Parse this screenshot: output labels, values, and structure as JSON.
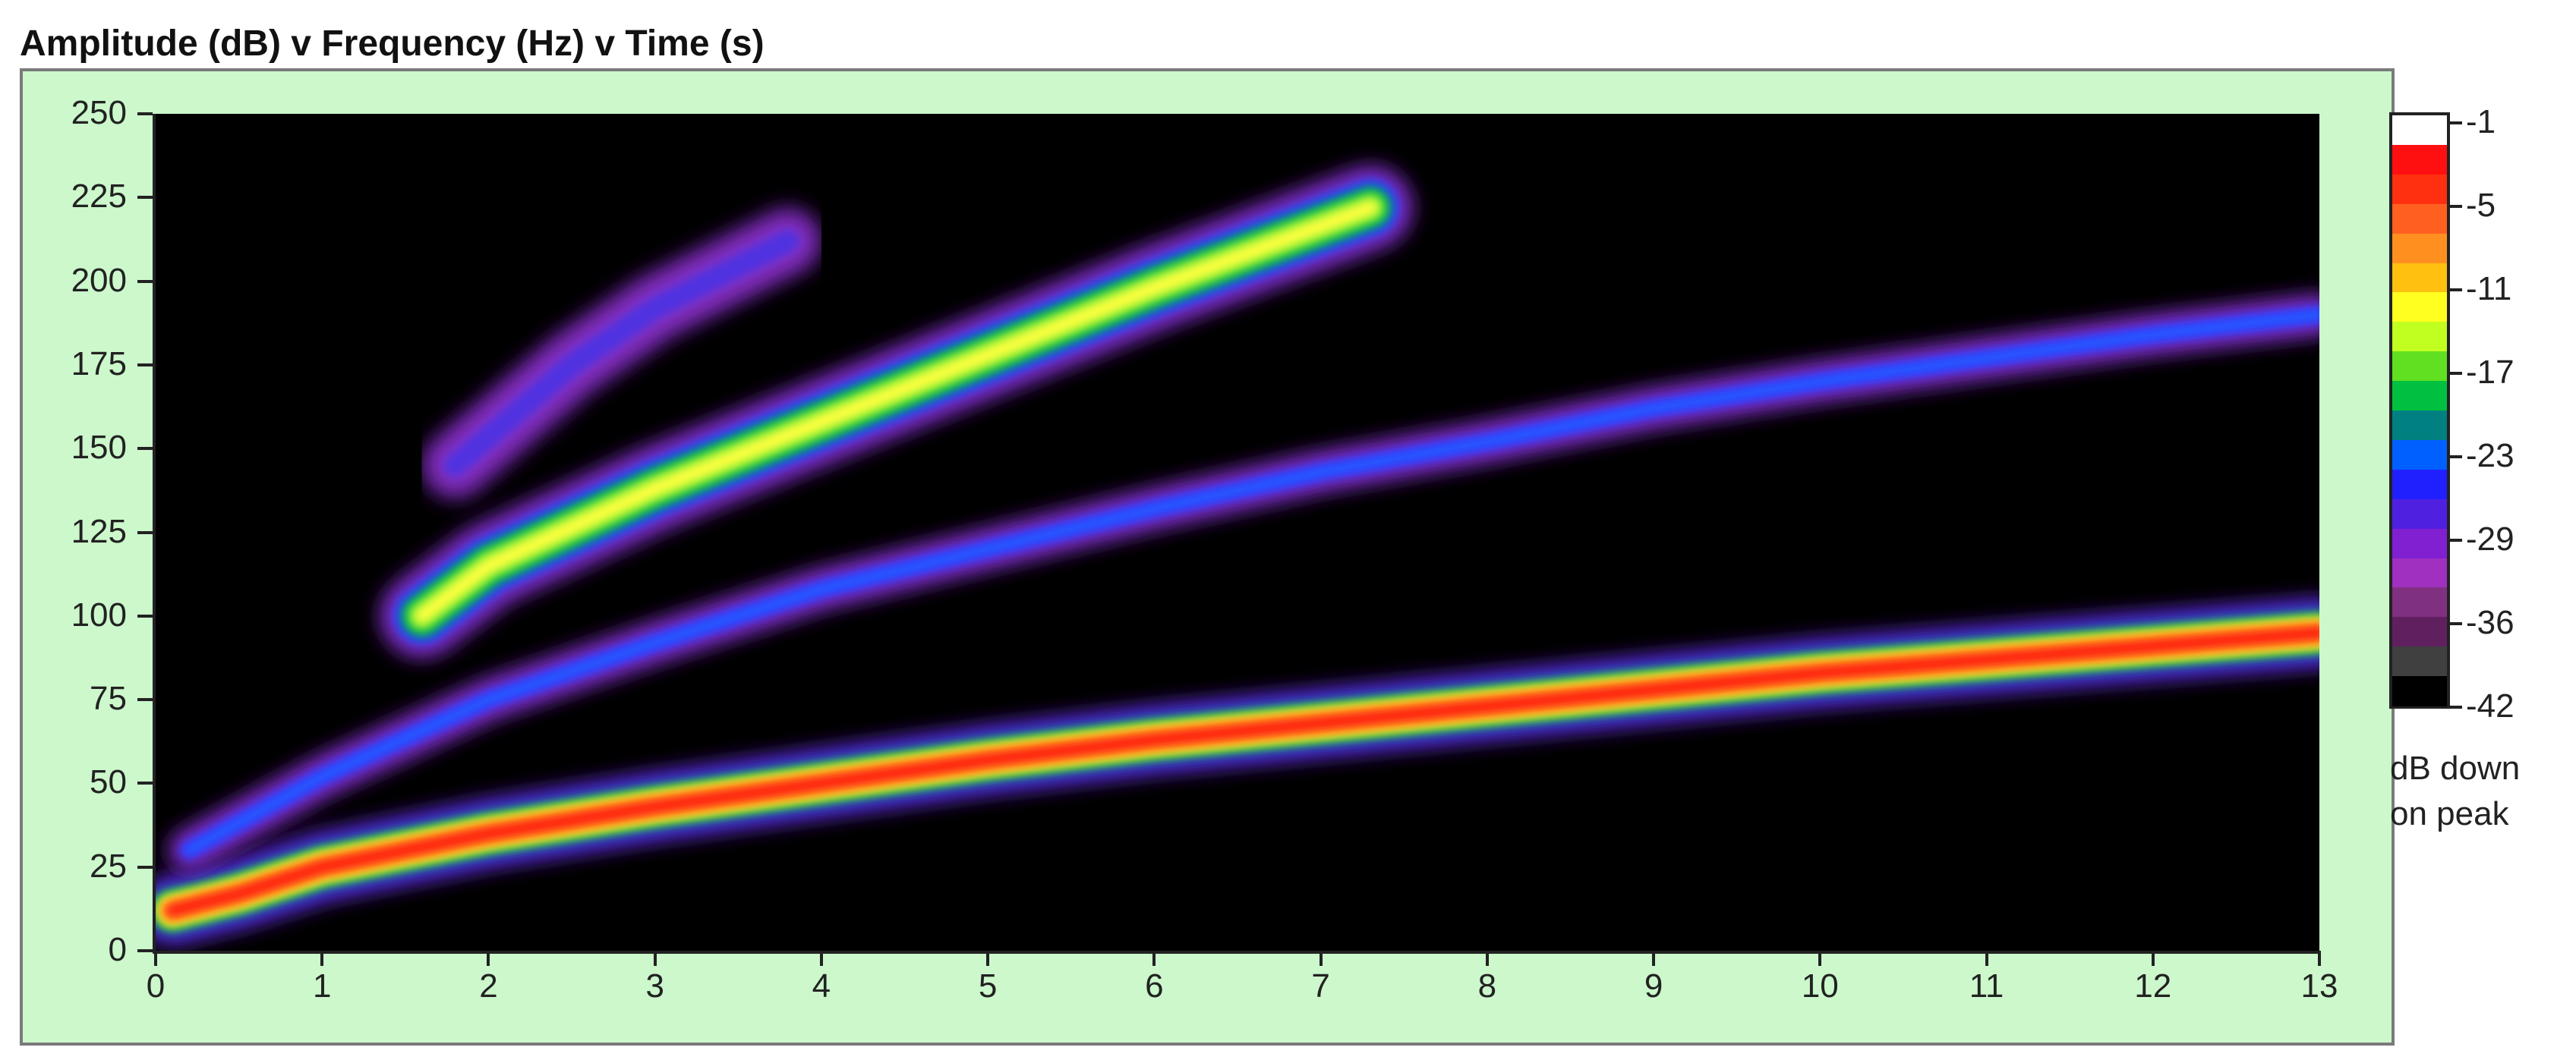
{
  "title": "Amplitude (dB) v Frequency (Hz) v Time (s)",
  "colors": {
    "panel_bg": "#ccf8cc",
    "plot_bg": "#000000"
  },
  "chart_data": {
    "type": "heatmap",
    "title": "Amplitude (dB) v Frequency (Hz) v Time (s)",
    "xlabel": "",
    "ylabel": "",
    "xlim": [
      0,
      13
    ],
    "ylim": [
      0,
      250
    ],
    "x_ticks": [
      "0",
      "1",
      "2",
      "3",
      "4",
      "5",
      "6",
      "7",
      "8",
      "9",
      "10",
      "11",
      "12",
      "13"
    ],
    "y_ticks": [
      "0",
      "25",
      "50",
      "75",
      "100",
      "125",
      "150",
      "175",
      "200",
      "225",
      "250"
    ],
    "colorbar": {
      "labels": [
        "-1",
        "-5",
        "-11",
        "-17",
        "-23",
        "-29",
        "-36",
        "-42"
      ],
      "title_line1": "dB down",
      "title_line2": "on peak",
      "colors": [
        "#ffffff",
        "#ff1010",
        "#ff3010",
        "#ff6020",
        "#ff9020",
        "#ffc010",
        "#ffff20",
        "#c0ff20",
        "#60e020",
        "#00c040",
        "#008080",
        "#0060ff",
        "#2020ff",
        "#5020e0",
        "#8020d0",
        "#a030c0",
        "#803080",
        "#602060",
        "#404040",
        "#000000"
      ]
    },
    "series": [
      {
        "x": [
          0.1,
          0.5,
          1,
          2,
          3,
          4,
          5,
          6,
          7,
          8,
          9,
          10,
          11,
          12,
          13
        ],
        "values": [
          12,
          17,
          25,
          35,
          43,
          50,
          57,
          63,
          68,
          73,
          78,
          83,
          87,
          91,
          95
        ],
        "peak_db": -5
      },
      {
        "x": [
          0.2,
          1,
          2,
          3,
          4,
          5,
          6,
          7,
          8,
          9,
          10,
          11,
          12,
          13
        ],
        "values": [
          30,
          52,
          75,
          92,
          108,
          120,
          132,
          143,
          152,
          162,
          170,
          177,
          184,
          190
        ],
        "peak_db": -29
      },
      {
        "x": [
          1.6,
          2,
          3,
          4,
          5,
          6,
          7.3
        ],
        "values": [
          100,
          115,
          138,
          158,
          178,
          198,
          222
        ],
        "peak_db": -17
      },
      {
        "x": [
          1.8,
          2.5,
          3,
          3.8
        ],
        "values": [
          145,
          175,
          192,
          212
        ],
        "peak_db": -36
      }
    ]
  }
}
